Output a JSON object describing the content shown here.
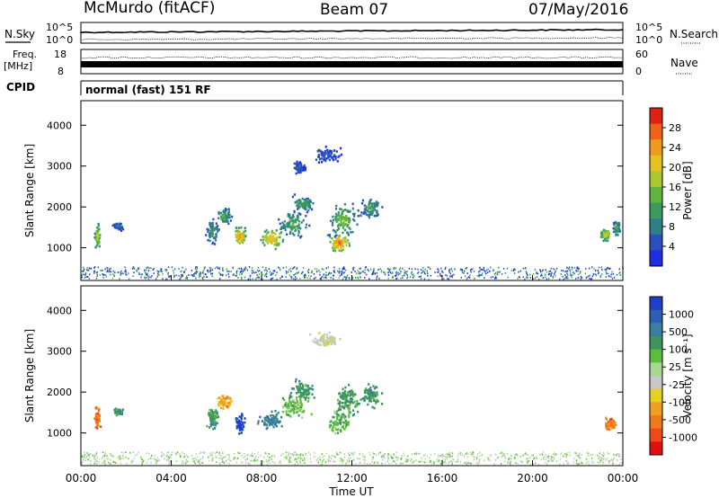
{
  "header": {
    "station": "McMurdo (fitACF)",
    "beam": "Beam 07",
    "date": "07/May/2016"
  },
  "status_panels": {
    "nsky_label": "N.Sky",
    "nsearch_label": "N.Search",
    "nsky_ticks": [
      "10^5",
      "10^0"
    ],
    "nsearch_ticks": [
      "10^5",
      "10^0"
    ],
    "freq_label": "Freq.",
    "freq_unit": "[MHz]",
    "freq_ticks": [
      "18",
      "8"
    ],
    "nave_label": "Nave",
    "nave_ticks": [
      "60",
      "0"
    ],
    "cpid_label": "CPID",
    "cpid_text": "normal (fast) 151 RF"
  },
  "chart_data": [
    {
      "type": "heatmap",
      "panel": "power",
      "xlabel": "",
      "ylabel": "Slant Range [km]",
      "yticks": [
        "1000",
        "2000",
        "3000",
        "4000"
      ],
      "ylim": [
        200,
        4600
      ],
      "xlim_hours": [
        0,
        24
      ],
      "colorbar": {
        "label": "Power [dB]",
        "ticks": [
          "4",
          "8",
          "12",
          "16",
          "20",
          "24",
          "28"
        ],
        "range": [
          0,
          32
        ],
        "colors": [
          "#1f2fe0",
          "#2a4fbf",
          "#2f7f8a",
          "#3c9a5c",
          "#60b440",
          "#a8c832",
          "#e6c21e",
          "#f09a1c",
          "#f0621a",
          "#e02010"
        ]
      },
      "blobs": [
        {
          "t": 0.7,
          "r": 1300,
          "dt": 0.15,
          "dr": 350,
          "v": 22
        },
        {
          "t": 1.6,
          "r": 1550,
          "dt": 0.3,
          "dr": 120,
          "v": 8
        },
        {
          "t": 5.8,
          "r": 1400,
          "dt": 0.35,
          "dr": 400,
          "v": 12
        },
        {
          "t": 6.3,
          "r": 1800,
          "dt": 0.4,
          "dr": 250,
          "v": 14
        },
        {
          "t": 7.0,
          "r": 1300,
          "dt": 0.35,
          "dr": 300,
          "v": 26
        },
        {
          "t": 8.4,
          "r": 1250,
          "dt": 0.7,
          "dr": 300,
          "v": 24
        },
        {
          "t": 9.4,
          "r": 1600,
          "dt": 0.8,
          "dr": 400,
          "v": 14
        },
        {
          "t": 9.8,
          "r": 2100,
          "dt": 0.7,
          "dr": 300,
          "v": 12
        },
        {
          "t": 11.4,
          "r": 1150,
          "dt": 0.6,
          "dr": 300,
          "v": 28
        },
        {
          "t": 11.6,
          "r": 1700,
          "dt": 0.8,
          "dr": 500,
          "v": 16
        },
        {
          "t": 12.8,
          "r": 2000,
          "dt": 0.6,
          "dr": 350,
          "v": 12
        },
        {
          "t": 10.8,
          "r": 3300,
          "dt": 0.8,
          "dr": 250,
          "v": 6
        },
        {
          "t": 9.6,
          "r": 3000,
          "dt": 0.4,
          "dr": 200,
          "v": 6
        },
        {
          "t": 23.2,
          "r": 1350,
          "dt": 0.3,
          "dr": 200,
          "v": 22
        },
        {
          "t": 23.7,
          "r": 1500,
          "dt": 0.2,
          "dr": 250,
          "v": 14
        }
      ]
    },
    {
      "type": "heatmap",
      "panel": "velocity",
      "xlabel": "Time UT",
      "ylabel": "Slant Range [km]",
      "xticks": [
        "00:00",
        "04:00",
        "08:00",
        "12:00",
        "16:00",
        "20:00",
        "00:00"
      ],
      "yticks": [
        "1000",
        "2000",
        "3000",
        "4000"
      ],
      "ylim": [
        200,
        4600
      ],
      "xlim_hours": [
        0,
        24
      ],
      "colorbar": {
        "label": "Velocity [m s⁻¹]",
        "ticks": [
          "1000",
          "500",
          "100",
          "25",
          "-25",
          "-100",
          "-500",
          "-1000"
        ],
        "colors": [
          "#2040c8",
          "#2f5fb0",
          "#3a7fa0",
          "#3e9460",
          "#5cbc3c",
          "#a8d890",
          "#c8c8c8",
          "#e8d020",
          "#f0a020",
          "#f07a1a",
          "#f04818",
          "#e01010"
        ]
      },
      "blobs": [
        {
          "t": 0.7,
          "r": 1400,
          "dt": 0.15,
          "dr": 350,
          "v": 9
        },
        {
          "t": 1.6,
          "r": 1550,
          "dt": 0.3,
          "dr": 120,
          "v": 3
        },
        {
          "t": 5.8,
          "r": 1400,
          "dt": 0.35,
          "dr": 400,
          "v": 3
        },
        {
          "t": 6.3,
          "r": 1800,
          "dt": 0.4,
          "dr": 250,
          "v": 8
        },
        {
          "t": 7.0,
          "r": 1250,
          "dt": 0.3,
          "dr": 280,
          "v": 0
        },
        {
          "t": 8.4,
          "r": 1350,
          "dt": 0.7,
          "dr": 300,
          "v": 2
        },
        {
          "t": 9.4,
          "r": 1700,
          "dt": 0.8,
          "dr": 400,
          "v": 4
        },
        {
          "t": 9.8,
          "r": 2100,
          "dt": 0.7,
          "dr": 300,
          "v": 3
        },
        {
          "t": 11.4,
          "r": 1300,
          "dt": 0.6,
          "dr": 400,
          "v": 4
        },
        {
          "t": 11.7,
          "r": 1800,
          "dt": 0.8,
          "dr": 500,
          "v": 3
        },
        {
          "t": 12.8,
          "r": 1950,
          "dt": 0.6,
          "dr": 350,
          "v": 3
        },
        {
          "t": 10.8,
          "r": 3300,
          "dt": 0.8,
          "dr": 250,
          "v": 6
        },
        {
          "t": 23.4,
          "r": 1250,
          "dt": 0.35,
          "dr": 200,
          "v": 9
        }
      ]
    }
  ]
}
